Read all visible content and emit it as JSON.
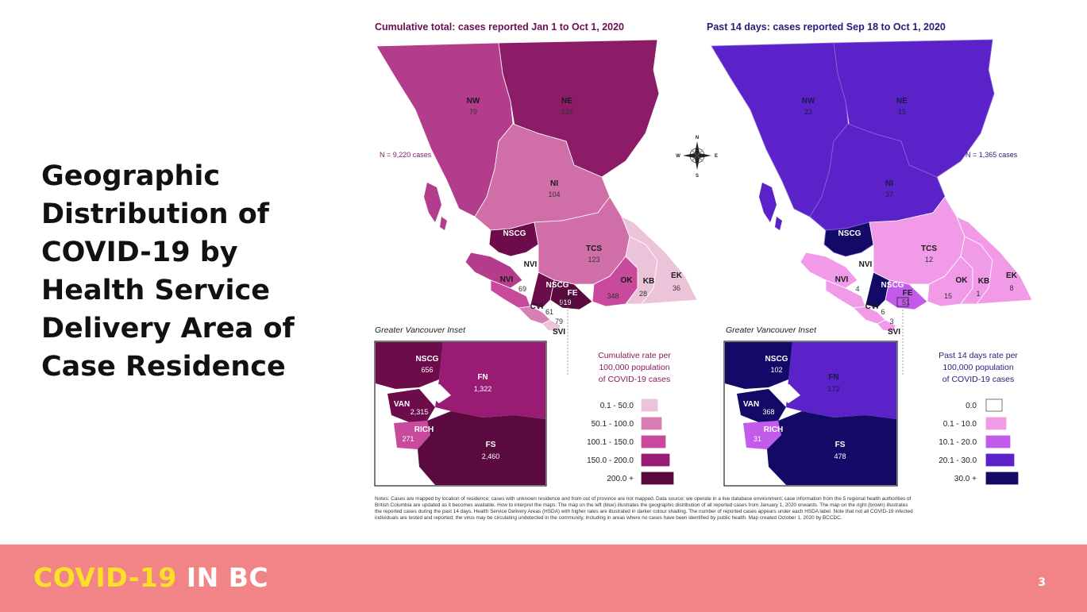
{
  "slide": {
    "title_lines": [
      "Geographic",
      "Distribution of",
      "COVID-19 by",
      "Health Service",
      "Delivery Area of",
      "Case Residence"
    ],
    "page_number": "3"
  },
  "footer": {
    "brand_part1": "COVID-19",
    "brand_part2": "IN BC"
  },
  "maps": {
    "cumulative": {
      "title": "Cumulative total: cases reported Jan 1 to Oct 1, 2020",
      "n_label": "N = 9,220 cases",
      "title_color": "#6a0f55",
      "regions": {
        "NW": "79",
        "NE": "134",
        "NI": "104",
        "TCS": "123",
        "NSCG": "",
        "NVI": "69",
        "NVI_label": "NVI",
        "OK": "348",
        "KB": "28",
        "EK": "36",
        "CVI": "61",
        "SVI": "79",
        "FE": "919",
        "NSCG_small": ""
      },
      "inset_title": "Greater Vancouver Inset",
      "inset_regions": {
        "NSCG": "656",
        "FN": "1,322",
        "VAN": "2,315",
        "RICH": "271",
        "FS": "2,460"
      },
      "legend_title": [
        "Cumulative rate per",
        "100,000 population",
        "of COVID-19 cases"
      ],
      "legend_title_color": "#8b1a5c",
      "legend": [
        {
          "label": "0.1 - 50.0",
          "color": "#ebc4da"
        },
        {
          "label": "50.1 - 100.0",
          "color": "#d97eb5"
        },
        {
          "label": "100.1 - 150.0",
          "color": "#c94a9c"
        },
        {
          "label": "150.0 - 200.0",
          "color": "#9a1b74"
        },
        {
          "label": "200.0 +",
          "color": "#5a0a3e"
        }
      ]
    },
    "recent": {
      "title": "Past 14 days: cases reported Sep 18 to Oct 1, 2020",
      "n_label": "N = 1,365 cases",
      "title_color": "#2a1a7a",
      "regions": {
        "NW": "23",
        "NE": "15",
        "NI": "37",
        "TCS": "12",
        "NVI": "4",
        "OK": "15",
        "KB": "1",
        "EK": "8",
        "CVI": "6",
        "SVI": "3",
        "FE": "51"
      },
      "inset_title": "Greater Vancouver Inset",
      "inset_regions": {
        "NSCG": "102",
        "FN": "172",
        "VAN": "368",
        "RICH": "31",
        "FS": "478"
      },
      "legend_title": [
        "Past 14 days rate per",
        "100,000 population",
        "of COVID-19 cases"
      ],
      "legend_title_color": "#2a1a7a",
      "legend": [
        {
          "label": "0.0",
          "color": "#ffffff"
        },
        {
          "label": "0.1 - 10.0",
          "color": "#f09ae8"
        },
        {
          "label": "10.1 - 20.0",
          "color": "#c25bea"
        },
        {
          "label": "20.1 - 30.0",
          "color": "#5b22c9"
        },
        {
          "label": "30.0 +",
          "color": "#120a66"
        }
      ]
    },
    "compass": {
      "n": "N",
      "s": "S",
      "e": "E",
      "w": "W"
    },
    "notes": [
      "Notes: Cases are mapped by location of residence; cases with unknown residence and from out of province are not mapped. Data source: we operate in a live database environment; case information from the 5 regional health authorities of",
      "British Columbia are updated as it becomes available. How to interpret the maps: The map on the left (blue) illustrates the geographic distribution of all reported cases from January 1, 2020 onwards. The map on the right (brown) illustrates",
      "the reported cases during the past 14 days. Health Service Delivery Areas (HSDA) with higher rates are illustrated in darker colour shading. The number of reported cases appears under each HSDA label. Note that not all COVID-19 infected",
      "individuals are tested and reported; the virus may be circulating undetected in the community, including in areas where no cases have been identified by public health. Map created October 1, 2020 by BCCDC."
    ]
  }
}
